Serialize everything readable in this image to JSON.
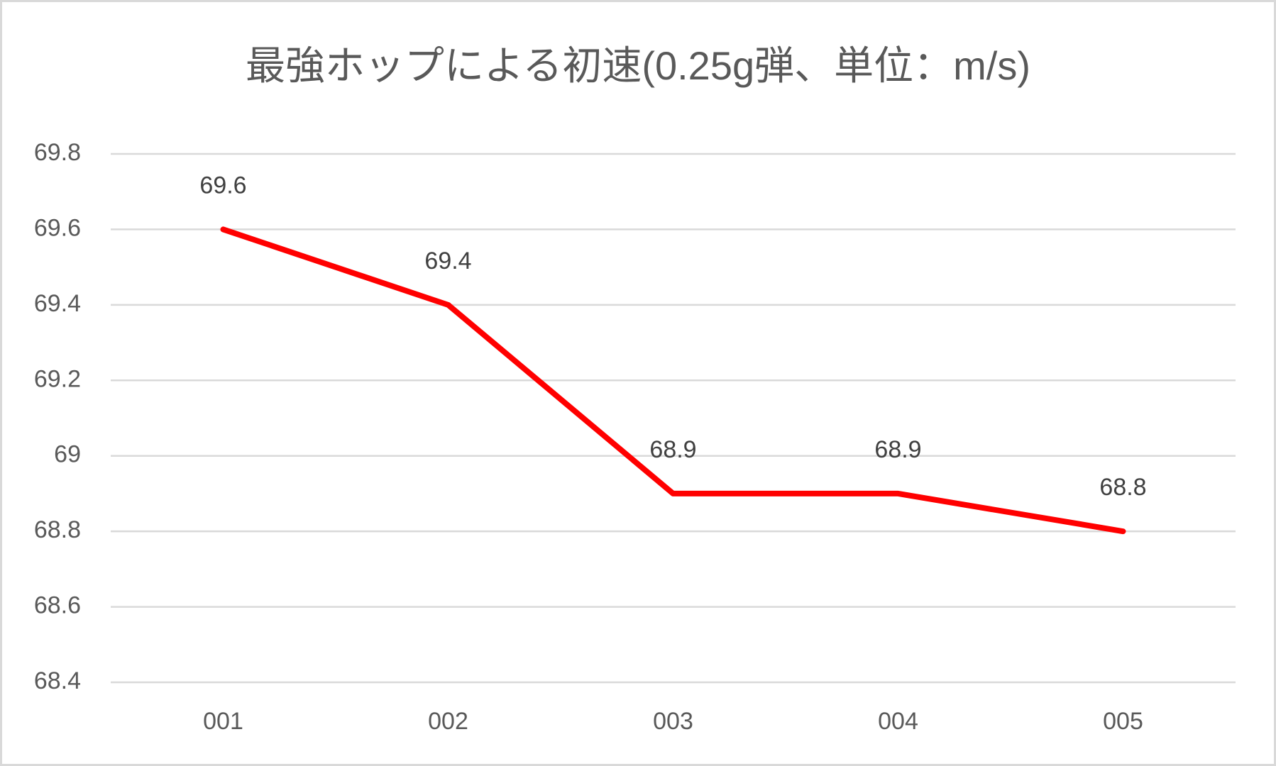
{
  "chart_data": {
    "type": "line",
    "title": "最強ホップによる初速(0.25g弾、単位：m/s)",
    "categories": [
      "001",
      "002",
      "003",
      "004",
      "005"
    ],
    "values": [
      69.6,
      69.4,
      68.9,
      68.9,
      68.8
    ],
    "color": "#ff0000",
    "ylim": [
      68.4,
      69.8
    ],
    "yticks": [
      68.4,
      68.6,
      68.8,
      69,
      69.2,
      69.4,
      69.6,
      69.8
    ],
    "grid": true,
    "data_labels": true
  }
}
